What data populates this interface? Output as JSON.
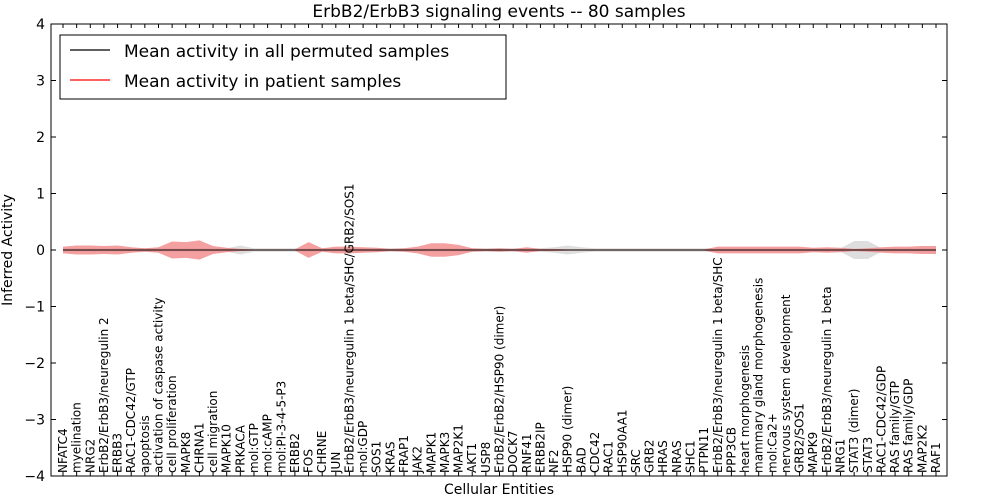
{
  "chart_data": {
    "type": "line",
    "title": "ErbB2/ErbB3 signaling events -- 80 samples",
    "xlabel": "Cellular Entities",
    "ylabel": "Inferred Activity",
    "ylim": [
      -4,
      4
    ],
    "yticks": [
      -4,
      -3,
      -2,
      -1,
      0,
      1,
      2,
      3,
      4
    ],
    "ytick_labels": [
      "−4",
      "−3",
      "−2",
      "−1",
      "0",
      "1",
      "2",
      "3",
      "4"
    ],
    "legend": {
      "position": "top-left",
      "entries": [
        {
          "label": "Mean activity in all permuted samples",
          "color": "#000000"
        },
        {
          "label": "Mean activity in patient samples",
          "color": "#ff0000"
        }
      ]
    },
    "colors": {
      "permuted_line": "#000000",
      "patient_line": "#ff0000",
      "patient_band": "#f08080",
      "permuted_band": "#c8c8c8"
    },
    "categories": [
      "NFATC4",
      "myelination",
      "NRG2",
      "ErbB2/ErbB3/neuregulin 2",
      "ERBB3",
      "RAC1-CDC42/GTP",
      "apoptosis",
      "activation of caspase activity",
      "cell proliferation",
      "MAPK8",
      "CHRNA1",
      "cell migration",
      "MAPK10",
      "PRKACA",
      "mol:GTP",
      "mol:cAMP",
      "mol:PI-3-4-5-P3",
      "ERBB2",
      "FOS",
      "CHRNE",
      "JUN",
      "ErbB2/ErbB3/neuregulin 1 beta/SHC/GRB2/SOS1",
      "mol:GDP",
      "SOS1",
      "KRAS",
      "FRAP1",
      "JAK2",
      "MAPK1",
      "MAPK3",
      "MAP2K1",
      "AKT1",
      "USP8",
      "ErbB2/ErbB2/HSP90 (dimer)",
      "DOCK7",
      "RNF41",
      "ERBB2IP",
      "NF2",
      "HSP90 (dimer)",
      "BAD",
      "CDC42",
      "RAC1",
      "HSP90AA1",
      "SRC",
      "GRB2",
      "HRAS",
      "NRAS",
      "SHC1",
      "PTPN11",
      "ErbB2/ErbB3/neuregulin 1 beta/SHC",
      "PPP3CB",
      "heart morphogenesis",
      "mammary gland morphogenesis",
      "mol:Ca2+",
      "nervous system development",
      "GRB2/SOS1",
      "MAPK9",
      "ErbB2/ErbB3/neuregulin 1 beta",
      "NRG1",
      "STAT3 (dimer)",
      "STAT3",
      "RAC1-CDC42/GDP",
      "RAS family/GTP",
      "RAS family/GDP",
      "MAP2K2",
      "RAF1"
    ],
    "series": [
      {
        "name": "Mean activity in all permuted samples",
        "values": [
          0,
          0,
          0,
          0,
          0,
          0,
          0,
          0,
          0,
          0,
          0,
          0,
          0,
          0,
          0,
          0,
          0,
          0,
          0,
          0,
          0,
          0,
          0,
          0,
          0,
          0,
          0,
          0,
          0,
          0,
          0,
          0,
          0,
          0,
          0,
          0,
          0,
          0,
          0,
          0,
          0,
          0,
          0,
          0,
          0,
          0,
          0,
          0,
          0,
          0,
          0,
          0,
          0,
          0,
          0,
          0,
          0,
          0,
          0,
          0,
          0,
          0,
          0,
          0,
          0
        ]
      },
      {
        "name": "Mean activity in patient samples",
        "values": [
          0,
          0,
          0,
          0,
          0,
          0,
          0,
          0,
          0,
          0,
          0,
          0,
          0,
          0,
          0,
          0,
          0,
          0,
          0,
          0,
          0,
          0,
          0,
          0,
          0,
          0,
          0,
          0,
          0,
          0,
          0,
          0,
          0,
          0,
          0,
          0,
          0,
          0,
          0,
          0,
          0,
          0,
          0,
          0,
          0,
          0,
          0,
          0,
          0,
          0,
          0,
          0,
          0,
          0,
          0,
          0,
          0,
          0,
          0,
          0,
          0,
          0,
          0,
          0,
          0
        ]
      }
    ],
    "patient_band_halfwidth": [
      0.06,
      0.08,
      0.08,
      0.07,
      0.08,
      0.05,
      0.03,
      0.05,
      0.15,
      0.14,
      0.17,
      0.07,
      0.04,
      0.02,
      0.01,
      0.01,
      0.01,
      0.01,
      0.14,
      0.03,
      0.06,
      0.06,
      0.05,
      0.04,
      0.02,
      0.03,
      0.06,
      0.12,
      0.12,
      0.09,
      0.03,
      0.02,
      0.03,
      0.02,
      0.05,
      0.02,
      0.02,
      0.01,
      0.01,
      0.01,
      0.01,
      0.01,
      0.01,
      0.01,
      0.01,
      0.01,
      0.01,
      0.01,
      0.06,
      0.06,
      0.06,
      0.06,
      0.06,
      0.06,
      0.06,
      0.04,
      0.05,
      0.04,
      0.02,
      0.03,
      0.05,
      0.06,
      0.06,
      0.07,
      0.07
    ],
    "permuted_band_halfwidth": [
      0.03,
      0.03,
      0.03,
      0.03,
      0.03,
      0.03,
      0.03,
      0.03,
      0.03,
      0.03,
      0.03,
      0.03,
      0.03,
      0.08,
      0.03,
      0.03,
      0.03,
      0.03,
      0.03,
      0.03,
      0.03,
      0.03,
      0.03,
      0.03,
      0.03,
      0.03,
      0.03,
      0.03,
      0.03,
      0.03,
      0.03,
      0.03,
      0.03,
      0.03,
      0.03,
      0.03,
      0.05,
      0.08,
      0.05,
      0.03,
      0.03,
      0.03,
      0.03,
      0.03,
      0.03,
      0.03,
      0.03,
      0.03,
      0.03,
      0.03,
      0.03,
      0.03,
      0.03,
      0.03,
      0.03,
      0.03,
      0.03,
      0.03,
      0.16,
      0.16,
      0.03,
      0.03,
      0.03,
      0.03,
      0.03
    ]
  }
}
